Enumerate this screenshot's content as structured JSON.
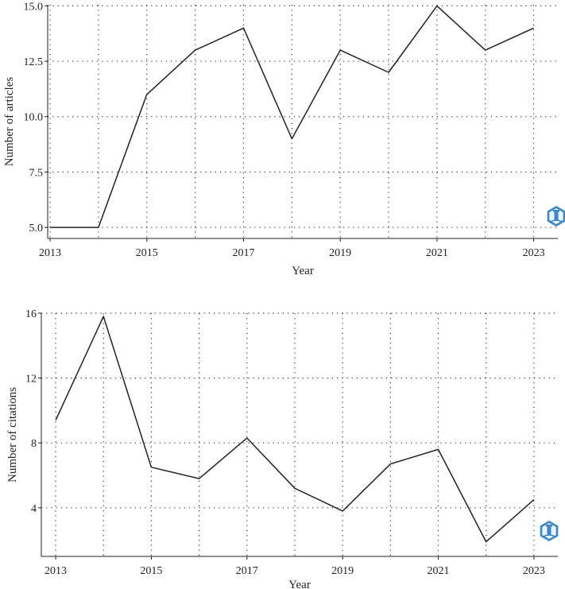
{
  "chart_data": [
    {
      "type": "line",
      "title": "",
      "xlabel": "Year",
      "ylabel": "Number of articles",
      "x": [
        2013,
        2014,
        2015,
        2016,
        2017,
        2018,
        2019,
        2020,
        2021,
        2022,
        2023
      ],
      "values": [
        5,
        5,
        11,
        13,
        14,
        9,
        13,
        12,
        15,
        13,
        14
      ],
      "xticks": [
        2013,
        2015,
        2017,
        2019,
        2021,
        2023
      ],
      "xtick_labels": [
        "2013",
        "2015",
        "2017",
        "2019",
        "2021",
        "2023"
      ],
      "yticks": [
        5,
        7.5,
        10,
        12.5,
        15
      ],
      "ytick_labels": [
        "5.0",
        "7.5",
        "10.0",
        "12.5",
        "15.0"
      ],
      "xlim": [
        2012.95,
        2023.5
      ],
      "ylim": [
        4.5,
        15.05
      ],
      "grid": true
    },
    {
      "type": "line",
      "title": "",
      "xlabel": "Year",
      "ylabel": "Number of citations",
      "x": [
        2013,
        2014,
        2015,
        2016,
        2017,
        2018,
        2019,
        2020,
        2021,
        2022,
        2023
      ],
      "values": [
        9.4,
        15.8,
        6.5,
        5.8,
        8.3,
        5.2,
        3.8,
        6.7,
        7.6,
        1.9,
        4.5
      ],
      "xticks": [
        2013,
        2015,
        2017,
        2019,
        2021,
        2023
      ],
      "xtick_labels": [
        "2013",
        "2015",
        "2017",
        "2019",
        "2021",
        "2023"
      ],
      "yticks": [
        4,
        8,
        12,
        16
      ],
      "ytick_labels": [
        "4",
        "8",
        "12",
        "16"
      ],
      "xlim": [
        2012.7,
        2023.5
      ],
      "ylim": [
        1.0,
        16.0
      ],
      "grid": true
    }
  ],
  "logo_icons": [
    "publisher-logo-icon",
    "publisher-logo-icon"
  ]
}
